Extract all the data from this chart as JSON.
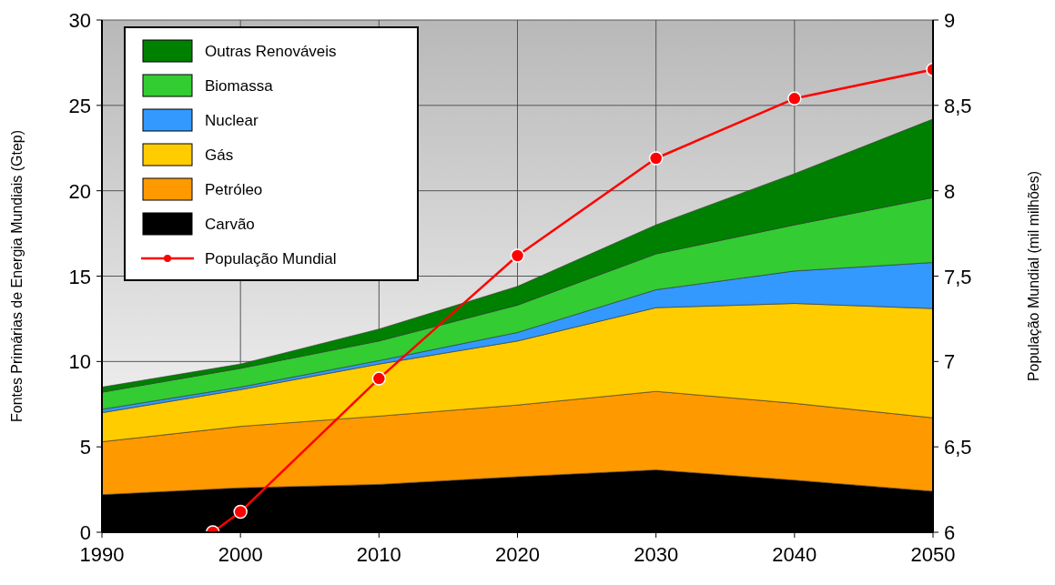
{
  "chart_data": {
    "type": "area",
    "stacked": true,
    "xlabel": null,
    "ylabel": "Fontes Primárias de Energia Mundiais (Gtep)",
    "y2label": "População Mundial (mil milhões)",
    "x": [
      1990,
      2000,
      2010,
      2020,
      2030,
      2040,
      2050
    ],
    "series": [
      {
        "name": "Carvão",
        "color": "#000000",
        "values": [
          2.2,
          2.6,
          2.8,
          3.25,
          3.65,
          3.05,
          2.4
        ]
      },
      {
        "name": "Petróleo",
        "color": "#ff9900",
        "values": [
          3.1,
          3.6,
          4.0,
          4.2,
          4.6,
          4.5,
          4.3
        ]
      },
      {
        "name": "Gás",
        "color": "#ffcc00",
        "values": [
          1.7,
          2.15,
          3.05,
          3.75,
          4.9,
          5.85,
          6.4
        ]
      },
      {
        "name": "Nuclear",
        "color": "#3399ff",
        "values": [
          0.2,
          0.15,
          0.2,
          0.5,
          1.05,
          1.9,
          2.7
        ]
      },
      {
        "name": "Biomassa",
        "color": "#33cc33",
        "values": [
          1.0,
          1.1,
          1.15,
          1.6,
          2.1,
          2.7,
          3.8
        ]
      },
      {
        "name": "Outras Renováveis",
        "color": "#008000",
        "values": [
          0.3,
          0.25,
          0.7,
          1.1,
          1.7,
          3.0,
          4.6
        ]
      },
      {
        "name": "População Mundial",
        "type": "line",
        "axis": "y2",
        "color": "#ff0000",
        "marker": "circle",
        "x": [
          1998,
          2000,
          2010,
          2020,
          2030,
          2040,
          2050
        ],
        "values": [
          6.0,
          6.12,
          6.9,
          7.62,
          8.19,
          8.54,
          8.71
        ]
      }
    ],
    "xlim": [
      1990,
      2050
    ],
    "xticks": [
      1990,
      2000,
      2010,
      2020,
      2030,
      2040,
      2050
    ],
    "ylim": [
      0,
      30
    ],
    "yticks": [
      0,
      5,
      10,
      15,
      20,
      25,
      30
    ],
    "y2lim": [
      6,
      9
    ],
    "y2ticks": [
      6,
      {
        "value": 6.5,
        "label": "6,5"
      },
      7,
      {
        "value": 7.5,
        "label": "7,5"
      },
      8,
      {
        "value": 8.5,
        "label": "8,5"
      },
      9
    ],
    "grid": true,
    "legend": "top left"
  }
}
